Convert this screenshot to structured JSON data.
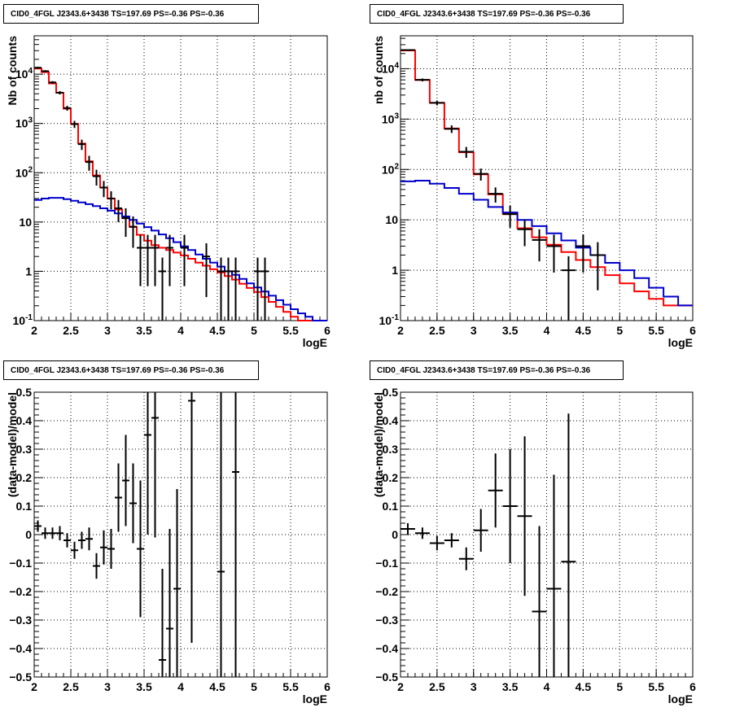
{
  "chart_data": [
    {
      "type": "step-histogram",
      "title": "CID0_4FGL J2343.6+3438 TS=197.69 PS=-0.36 PS=-0.36",
      "xlabel": "logE",
      "ylabel": "Nb of counts",
      "xlim": [
        2,
        6
      ],
      "ylim": [
        0.1,
        60000
      ],
      "yscale": "log",
      "grid": true,
      "x_ticks": [
        "2",
        "2.5",
        "3",
        "3.5",
        "4",
        "4.5",
        "5",
        "5.5",
        "6"
      ],
      "y_ticks": [
        "10^-1",
        "1",
        "10",
        "10^2",
        "10^3",
        "10^4"
      ],
      "bin_edges_start": 2.0,
      "bin_width": 0.1,
      "series": [
        {
          "color": "#ff0000",
          "values": [
            13000,
            11000,
            6500,
            4200,
            2000,
            980,
            390,
            170,
            88,
            50,
            30,
            18,
            12,
            8,
            5.5,
            4.2,
            3.4,
            3.0,
            2.7,
            2.4,
            2.1,
            1.8,
            1.5,
            1.3,
            1.1,
            0.95,
            0.8,
            0.68,
            0.56,
            0.46,
            0.38,
            0.3,
            0.24,
            0.19,
            0.15,
            0.12,
            0.1,
            0.1,
            0.1,
            0.1
          ]
        },
        {
          "color": "#0000cc",
          "values": [
            28,
            30,
            31,
            31,
            29,
            27,
            25,
            23,
            21,
            19,
            17,
            15,
            13,
            11,
            9.3,
            7.9,
            6.7,
            5.6,
            4.7,
            3.9,
            3.2,
            2.7,
            2.2,
            1.8,
            1.5,
            1.25,
            1.0,
            0.85,
            0.7,
            0.57,
            0.47,
            0.39,
            0.32,
            0.26,
            0.21,
            0.17,
            0.14,
            0.12,
            0.1,
            0.1
          ]
        }
      ],
      "points": [
        {
          "x": 2.05,
          "y": 13500,
          "dy": 600
        },
        {
          "x": 2.15,
          "y": 11500,
          "dy": 550
        },
        {
          "x": 2.25,
          "y": 6800,
          "dy": 420
        },
        {
          "x": 2.35,
          "y": 4200,
          "dy": 330
        },
        {
          "x": 2.45,
          "y": 2050,
          "dy": 230
        },
        {
          "x": 2.55,
          "y": 970,
          "dy": 160
        },
        {
          "x": 2.65,
          "y": 380,
          "dy": 90
        },
        {
          "x": 2.75,
          "y": 165,
          "dy": 55
        },
        {
          "x": 2.85,
          "y": 85,
          "dy": 30
        },
        {
          "x": 2.95,
          "y": 50,
          "dy": 18
        },
        {
          "x": 3.05,
          "y": 30,
          "dy": 12
        },
        {
          "x": 3.15,
          "y": 19,
          "dy": 9
        },
        {
          "x": 3.25,
          "y": 12,
          "dy": 7
        },
        {
          "x": 3.35,
          "y": 8,
          "dy": 5
        },
        {
          "x": 3.45,
          "y": 3,
          "dy": 2.5
        },
        {
          "x": 3.55,
          "y": 3,
          "dy": 2.5
        },
        {
          "x": 3.65,
          "y": 3,
          "dy": 2.5
        },
        {
          "x": 3.75,
          "y": 1,
          "dy": 0.9
        },
        {
          "x": 3.85,
          "y": 3,
          "dy": 2.5
        },
        {
          "x": 4.05,
          "y": 3,
          "dy": 2.5
        },
        {
          "x": 4.35,
          "y": 2,
          "dy": 1.7
        },
        {
          "x": 4.55,
          "y": 1,
          "dy": 0.9
        },
        {
          "x": 4.65,
          "y": 1,
          "dy": 0.9
        },
        {
          "x": 4.75,
          "y": 1,
          "dy": 0.9
        },
        {
          "x": 5.05,
          "y": 1,
          "dy": 0.9
        },
        {
          "x": 5.15,
          "y": 1,
          "dy": 0.9
        }
      ]
    },
    {
      "type": "step-histogram",
      "title": "CID0_4FGL J2343.6+3438 TS=197.69 PS=-0.36 PS=-0.36",
      "xlabel": "logE",
      "ylabel": "nb of counts",
      "xlim": [
        2,
        6
      ],
      "ylim": [
        0.1,
        45000
      ],
      "yscale": "log",
      "grid": true,
      "x_ticks": [
        "2",
        "2.5",
        "3",
        "3.5",
        "4",
        "4.5",
        "5",
        "5.5",
        "6"
      ],
      "y_ticks": [
        "10^-1",
        "1",
        "10",
        "10^2",
        "10^3",
        "10^4"
      ],
      "bin_edges_start": 2.0,
      "bin_width": 0.2,
      "series": [
        {
          "color": "#ff0000",
          "values": [
            23000,
            6000,
            2100,
            650,
            220,
            80,
            32,
            13,
            6.8,
            4.5,
            3.2,
            2.3,
            1.6,
            1.15,
            0.8,
            0.55,
            0.38,
            0.27,
            0.2,
            0.2
          ]
        },
        {
          "color": "#0000cc",
          "values": [
            58,
            60,
            52,
            43,
            33,
            25,
            18,
            14,
            10,
            7.5,
            5.4,
            3.9,
            2.8,
            2.0,
            1.4,
            1.0,
            0.7,
            0.45,
            0.3,
            0.2
          ]
        }
      ],
      "points": [
        {
          "x": 2.1,
          "y": 23500,
          "dy": 800
        },
        {
          "x": 2.3,
          "y": 6000,
          "dy": 400
        },
        {
          "x": 2.5,
          "y": 2100,
          "dy": 230
        },
        {
          "x": 2.7,
          "y": 640,
          "dy": 110
        },
        {
          "x": 2.9,
          "y": 225,
          "dy": 55
        },
        {
          "x": 3.1,
          "y": 82,
          "dy": 22
        },
        {
          "x": 3.3,
          "y": 33,
          "dy": 11
        },
        {
          "x": 3.5,
          "y": 13,
          "dy": 6
        },
        {
          "x": 3.7,
          "y": 6.5,
          "dy": 3.5
        },
        {
          "x": 3.9,
          "y": 4,
          "dy": 2.5
        },
        {
          "x": 4.1,
          "y": 3,
          "dy": 2.1
        },
        {
          "x": 4.3,
          "y": 1,
          "dy": 0.9
        },
        {
          "x": 4.5,
          "y": 3,
          "dy": 2.1
        },
        {
          "x": 4.7,
          "y": 2,
          "dy": 1.6
        }
      ]
    },
    {
      "type": "scatter-errorbars",
      "title": "CID0_4FGL J2343.6+3438 TS=197.69 PS=-0.36 PS=-0.36",
      "xlabel": "logE",
      "ylabel": "(data-model)/model",
      "xlim": [
        2,
        6
      ],
      "ylim": [
        -0.5,
        0.5
      ],
      "grid": true,
      "x_ticks": [
        "2",
        "2.5",
        "3",
        "3.5",
        "4",
        "4.5",
        "5",
        "5.5",
        "6"
      ],
      "y_ticks": [
        "-0.5",
        "-0.4",
        "-0.3",
        "-0.2",
        "-0.1",
        "0",
        "0.1",
        "0.2",
        "0.3",
        "0.4",
        "0.5"
      ],
      "bin_width": 0.1,
      "points": [
        {
          "x": 2.05,
          "y": 0.03,
          "dy": 0.02
        },
        {
          "x": 2.15,
          "y": 0.005,
          "dy": 0.02
        },
        {
          "x": 2.25,
          "y": 0.005,
          "dy": 0.02
        },
        {
          "x": 2.35,
          "y": 0.005,
          "dy": 0.025
        },
        {
          "x": 2.45,
          "y": -0.02,
          "dy": 0.025
        },
        {
          "x": 2.55,
          "y": -0.055,
          "dy": 0.03
        },
        {
          "x": 2.65,
          "y": -0.02,
          "dy": 0.03
        },
        {
          "x": 2.75,
          "y": -0.015,
          "dy": 0.04
        },
        {
          "x": 2.85,
          "y": -0.11,
          "dy": 0.045
        },
        {
          "x": 2.95,
          "y": -0.045,
          "dy": 0.06
        },
        {
          "x": 3.05,
          "y": -0.05,
          "dy": 0.07
        },
        {
          "x": 3.15,
          "y": 0.13,
          "dy": 0.12
        },
        {
          "x": 3.25,
          "y": 0.19,
          "dy": 0.16
        },
        {
          "x": 3.35,
          "y": 0.11,
          "dy": 0.14
        },
        {
          "x": 3.45,
          "y": -0.05,
          "dy": 0.24
        },
        {
          "x": 3.55,
          "y": 0.35,
          "dy": 0.35
        },
        {
          "x": 3.65,
          "y": 0.41,
          "dy": 0.42
        },
        {
          "x": 3.75,
          "y": -0.44,
          "dy": 0.32
        },
        {
          "x": 3.85,
          "y": -0.33,
          "dy": 0.35
        },
        {
          "x": 3.95,
          "y": -0.19,
          "dy": 0.35
        },
        {
          "x": 4.15,
          "y": 0.47,
          "dy": 0.85
        },
        {
          "x": 4.55,
          "y": -0.13,
          "dy": 1.5
        },
        {
          "x": 4.75,
          "y": 0.22,
          "dy": 1.5
        }
      ]
    },
    {
      "type": "scatter-errorbars",
      "title": "CID0_4FGL J2343.6+3438 TS=197.69 PS=-0.36 PS=-0.36",
      "xlabel": "logE",
      "ylabel": "(data-model)/model",
      "xlim": [
        2,
        6
      ],
      "ylim": [
        -0.5,
        0.5
      ],
      "grid": true,
      "x_ticks": [
        "2",
        "2.5",
        "3",
        "3.5",
        "4",
        "4.5",
        "5",
        "5.5",
        "6"
      ],
      "y_ticks": [
        "-0.5",
        "-0.4",
        "-0.3",
        "-0.2",
        "-0.1",
        "0",
        "0.1",
        "0.2",
        "0.3",
        "0.4",
        "0.5"
      ],
      "bin_width": 0.2,
      "points": [
        {
          "x": 2.1,
          "y": 0.02,
          "dy": 0.02
        },
        {
          "x": 2.3,
          "y": 0.005,
          "dy": 0.02
        },
        {
          "x": 2.5,
          "y": -0.03,
          "dy": 0.025
        },
        {
          "x": 2.7,
          "y": -0.02,
          "dy": 0.025
        },
        {
          "x": 2.9,
          "y": -0.085,
          "dy": 0.04
        },
        {
          "x": 3.1,
          "y": 0.015,
          "dy": 0.075
        },
        {
          "x": 3.3,
          "y": 0.155,
          "dy": 0.13
        },
        {
          "x": 3.5,
          "y": 0.1,
          "dy": 0.2
        },
        {
          "x": 3.7,
          "y": 0.065,
          "dy": 0.28
        },
        {
          "x": 3.9,
          "y": -0.27,
          "dy": 0.3
        },
        {
          "x": 4.1,
          "y": -0.19,
          "dy": 0.4
        },
        {
          "x": 4.3,
          "y": -0.095,
          "dy": 0.52
        }
      ]
    }
  ]
}
